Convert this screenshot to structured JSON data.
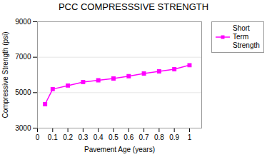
{
  "chart_data": {
    "type": "line",
    "title": "PCC COMPRESSSIVE STRENGTH",
    "xlabel": "Pavement Age (years)",
    "ylabel": "Compressive Strength (psi)",
    "x": [
      0.05,
      0.1,
      0.2,
      0.3,
      0.4,
      0.5,
      0.6,
      0.7,
      0.8,
      0.9,
      1.0
    ],
    "series": [
      {
        "name": "Short\nTerm\nStrength",
        "color": "#FF00FF",
        "marker": "square",
        "values": [
          4350,
          5200,
          5400,
          5600,
          5700,
          5800,
          5930,
          6080,
          6200,
          6320,
          6550
        ]
      }
    ],
    "xlim": [
      0,
      1.08
    ],
    "xticks": [
      0,
      0.1,
      0.2,
      0.3,
      0.4,
      0.5,
      0.6,
      0.7,
      0.8,
      0.9,
      1.0
    ],
    "ylim": [
      3000,
      9000
    ],
    "yticks": [
      3000,
      5000,
      7000,
      9000
    ],
    "grid": true,
    "legend": "upper right"
  }
}
